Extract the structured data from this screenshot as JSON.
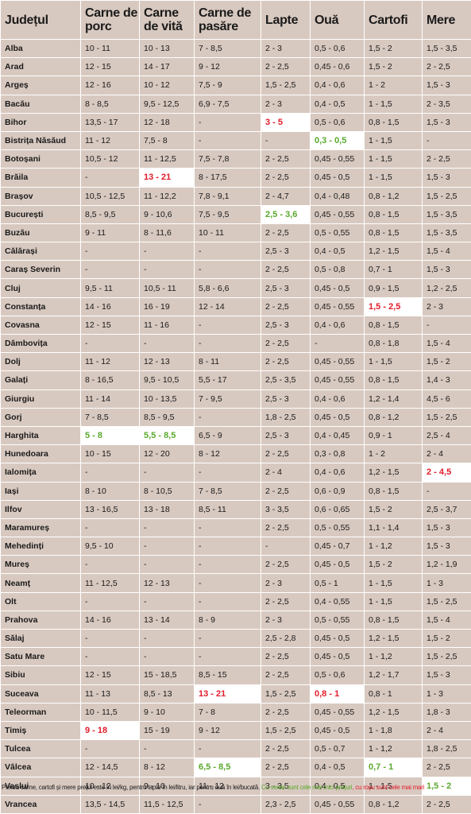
{
  "headers": [
    "Județul",
    "Carne de porc",
    "Carne de vită",
    "Carne de pasăre",
    "Lapte",
    "Ouă",
    "Cartofi",
    "Mere"
  ],
  "rows": [
    {
      "county": "Alba",
      "cells": [
        "10 - 11",
        "10 - 13",
        "7 - 8,5",
        "2 - 3",
        "0,5 - 0,6",
        "1,5 - 2",
        "1,5 - 3,5"
      ]
    },
    {
      "county": "Arad",
      "cells": [
        "12 - 15",
        "14 - 17",
        "9 - 12",
        "2 - 2,5",
        "0,45 - 0,6",
        "1,5 - 2",
        "2 - 2,5"
      ]
    },
    {
      "county": "Argeș",
      "cells": [
        "12 - 16",
        "10 - 12",
        "7,5 - 9",
        "1,5 - 2,5",
        "0,4 - 0,6",
        "1 - 2",
        "1,5 - 3"
      ]
    },
    {
      "county": "Bacău",
      "cells": [
        "8 - 8,5",
        "9,5 - 12,5",
        "6,9 - 7,5",
        "2 - 3",
        "0,4 - 0,5",
        "1 - 1,5",
        "2 - 3,5"
      ]
    },
    {
      "county": "Bihor",
      "cells": [
        "13,5 - 17",
        "12 - 18",
        "-",
        "3 - 5",
        "0,5 - 0,6",
        "0,8 - 1,5",
        "1,5 - 3"
      ],
      "hl": {
        "3": "red"
      }
    },
    {
      "county": "Bistrița Năsăud",
      "cells": [
        "11 - 12",
        "7,5 - 8",
        "-",
        "-",
        "0,3 - 0,5",
        "1 - 1,5",
        "-"
      ],
      "hl": {
        "4": "green"
      }
    },
    {
      "county": "Botoșani",
      "cells": [
        "10,5 - 12",
        "11 - 12,5",
        "7,5 - 7,8",
        "2 - 2,5",
        "0,45 - 0,55",
        "1 - 1,5",
        "2 - 2,5"
      ]
    },
    {
      "county": "Brăila",
      "cells": [
        "-",
        "13 - 21",
        "8 - 17,5",
        "2 - 2,5",
        "0,45 - 0,5",
        "1 - 1,5",
        "1,5 - 3"
      ],
      "hl": {
        "1": "red"
      }
    },
    {
      "county": "Brașov",
      "cells": [
        "10,5 - 12,5",
        "11 - 12,2",
        "7,8 - 9,1",
        "2 - 4,7",
        "0,4 - 0,48",
        "0,8 - 1,2",
        "1,5 - 2,5"
      ]
    },
    {
      "county": "București",
      "cells": [
        "8,5 - 9,5",
        "9 - 10,6",
        "7,5 - 9,5",
        "2,5 - 3,6",
        "0,45 - 0,55",
        "0,8 - 1,5",
        "1,5 - 3,5"
      ],
      "hl": {
        "3": "green"
      }
    },
    {
      "county": "Buzău",
      "cells": [
        "9 - 11",
        "8 - 11,6",
        "10 - 11",
        "2 - 2,5",
        "0,5 - 0,55",
        "0,8 - 1,5",
        "1,5 - 3,5"
      ]
    },
    {
      "county": "Călărași",
      "cells": [
        "-",
        "-",
        "-",
        "2,5 - 3",
        "0,4 - 0,5",
        "1,2 - 1,5",
        "1,5 - 4"
      ]
    },
    {
      "county": "Caraș Severin",
      "cells": [
        "-",
        "-",
        "-",
        "2 - 2,5",
        "0,5 - 0,8",
        "0,7 - 1",
        "1,5 - 3"
      ]
    },
    {
      "county": "Cluj",
      "cells": [
        "9,5 - 11",
        "10,5 - 11",
        "5,8 - 6,6",
        "2,5 - 3",
        "0,45 - 0,5",
        "0,9 - 1,5",
        "1,2 - 2,5"
      ]
    },
    {
      "county": "Constanța",
      "cells": [
        "14 - 16",
        "16 - 19",
        "12 - 14",
        "2 - 2,5",
        "0,45 - 0,55",
        "1,5 - 2,5",
        "2 - 3"
      ],
      "hl": {
        "5": "red"
      }
    },
    {
      "county": "Covasna",
      "cells": [
        "12 - 15",
        "11 - 16",
        "-",
        "2,5 - 3",
        "0,4 - 0,6",
        "0,8 - 1,5",
        "-"
      ]
    },
    {
      "county": "Dâmbovița",
      "cells": [
        "-",
        "-",
        "-",
        "2 - 2,5",
        "-",
        "0,8 - 1,8",
        "1,5 - 4"
      ]
    },
    {
      "county": "Dolj",
      "cells": [
        "11 - 12",
        "12 - 13",
        "8 - 11",
        "2 - 2,5",
        "0,45 - 0,55",
        "1 - 1,5",
        "1,5 - 2"
      ]
    },
    {
      "county": "Galați",
      "cells": [
        "8 - 16,5",
        "9,5 - 10,5",
        "5,5 - 17",
        "2,5 - 3,5",
        "0,45 - 0,55",
        "0,8 - 1,5",
        "1,4 - 3"
      ]
    },
    {
      "county": "Giurgiu",
      "cells": [
        "11 - 14",
        "10 - 13,5",
        "7 - 9,5",
        "2,5 - 3",
        "0,4 - 0,6",
        "1,2 - 1,4",
        "4,5 - 6"
      ]
    },
    {
      "county": "Gorj",
      "cells": [
        "7 - 8,5",
        "8,5 - 9,5",
        "-",
        "1,8 - 2,5",
        "0,45 - 0,5",
        "0,8 - 1,2",
        "1,5 - 2,5"
      ]
    },
    {
      "county": "Harghita",
      "cells": [
        "5 - 8",
        "5,5 - 8,5",
        "6,5 - 9",
        "2,5 - 3",
        "0,4 - 0,45",
        "0,9 - 1",
        "2,5 - 4"
      ],
      "hl": {
        "0": "green",
        "1": "green"
      }
    },
    {
      "county": "Hunedoara",
      "cells": [
        "10 - 15",
        "12 - 20",
        "8 - 12",
        "2 - 2,5",
        "0,3 - 0,8",
        "1 - 2",
        "2 - 4"
      ]
    },
    {
      "county": "Ialomița",
      "cells": [
        "-",
        "-",
        "-",
        "2 - 4",
        "0,4 - 0,6",
        "1,2 - 1,5",
        "2 - 4,5"
      ],
      "hl": {
        "6": "red"
      }
    },
    {
      "county": "Iași",
      "cells": [
        "8 - 10",
        "8 - 10,5",
        "7 - 8,5",
        "2 - 2,5",
        "0,6 - 0,9",
        "0,8 - 1,5",
        "-"
      ]
    },
    {
      "county": "Ilfov",
      "cells": [
        "13 - 16,5",
        "13 - 18",
        "8,5 - 11",
        "3 - 3,5",
        "0,6 - 0,65",
        "1,5 - 2",
        "2,5 - 3,7"
      ]
    },
    {
      "county": "Maramureș",
      "cells": [
        "-",
        "-",
        "-",
        "2 - 2,5",
        "0,5 - 0,55",
        "1,1 - 1,4",
        "1,5 - 3"
      ]
    },
    {
      "county": "Mehedinți",
      "cells": [
        "9,5 - 10",
        "-",
        "-",
        "-",
        "0,45 - 0,7",
        "1 - 1,2",
        "1,5 - 3"
      ]
    },
    {
      "county": "Mureș",
      "cells": [
        "-",
        "-",
        "-",
        "2 - 2,5",
        "0,45 - 0,5",
        "1,5 - 2",
        "1,2 - 1,9"
      ]
    },
    {
      "county": "Neamț",
      "cells": [
        "11 - 12,5",
        "12 - 13",
        "-",
        "2 - 3",
        "0,5 - 1",
        "1 - 1,5",
        "1 - 3"
      ]
    },
    {
      "county": "Olt",
      "cells": [
        "-",
        "-",
        "-",
        "2 - 2,5",
        "0,4 - 0,55",
        "1 - 1,5",
        "1,5 - 2,5"
      ]
    },
    {
      "county": "Prahova",
      "cells": [
        "14 - 16",
        "13 - 14",
        "8 - 9",
        "2 - 3",
        "0,5 - 0,55",
        "0,8 - 1,5",
        "1,5 - 4"
      ]
    },
    {
      "county": "Sălaj",
      "cells": [
        "-",
        "-",
        "-",
        "2,5 - 2,8",
        "0,45 - 0,5",
        "1,2 - 1,5",
        "1,5 - 2"
      ]
    },
    {
      "county": "Satu Mare",
      "cells": [
        "-",
        "-",
        "-",
        "2 - 2,5",
        "0,45 - 0,5",
        "1 - 1,2",
        "1,5 - 2,5"
      ]
    },
    {
      "county": "Sibiu",
      "cells": [
        "12 - 15",
        "15 - 18,5",
        "8,5 - 15",
        "2 - 2,5",
        "0,5 - 0,6",
        "1,2 - 1,7",
        "1,5 - 3"
      ]
    },
    {
      "county": "Suceava",
      "cells": [
        "11 - 13",
        "8,5 - 13",
        "13 - 21",
        "1,5 - 2,5",
        "0,8 - 1",
        "0,8 - 1",
        "1 - 3"
      ],
      "hl": {
        "2": "red",
        "4": "red"
      }
    },
    {
      "county": "Teleorman",
      "cells": [
        "10 - 11,5",
        "9 - 10",
        "7 - 8",
        "2 - 2,5",
        "0,45 - 0,55",
        "1,2 - 1,5",
        "1,8 - 3"
      ]
    },
    {
      "county": "Timiș",
      "cells": [
        "9 - 18",
        "15 - 19",
        "9 - 12",
        "1,5 - 2,5",
        "0,45 - 0,5",
        "1 - 1,8",
        "2 - 4"
      ],
      "hl": {
        "0": "red"
      }
    },
    {
      "county": "Tulcea",
      "cells": [
        "-",
        "-",
        "-",
        "2 - 2,5",
        "0,5 - 0,7",
        "1 - 1,2",
        "1,8 - 2,5"
      ]
    },
    {
      "county": "Vâlcea",
      "cells": [
        "12 - 14,5",
        "8 - 12",
        "6,5 - 8,5",
        "2 - 2,5",
        "0,4 - 0,5",
        "0,7 - 1",
        "2 - 2,5"
      ],
      "hl": {
        "2": "green",
        "5": "green"
      }
    },
    {
      "county": "Vaslui",
      "cells": [
        "10 - 12",
        "9 - 10",
        "11 - 12",
        "3 - 3,5",
        "0,4 - 0,5",
        "1 - 1,5",
        "1,5 - 2"
      ],
      "hl": {
        "6": "green"
      }
    },
    {
      "county": "Vrancea",
      "cells": [
        "13,5 - 14,5",
        "11,5 - 12,5",
        "-",
        "2,3 - 2,5",
        "0,45 - 0,55",
        "0,8 - 1,2",
        "2 - 2,5"
      ]
    }
  ],
  "footer": {
    "main": "Pentru carne, cartofi și mere prețul este în lei/kg, pentru lapte în lei/litru, iar pentru ouă în lei/bucată.",
    "green_note": "Cu verde sunt cele mai mici prețuri",
    "red_note": ", cu roșu sunt cele mai mari"
  },
  "colors": {
    "background": "#d8c9c0",
    "grid": "#ffffff",
    "highlight_red": "#e21b2a",
    "highlight_green": "#5aa82c"
  }
}
